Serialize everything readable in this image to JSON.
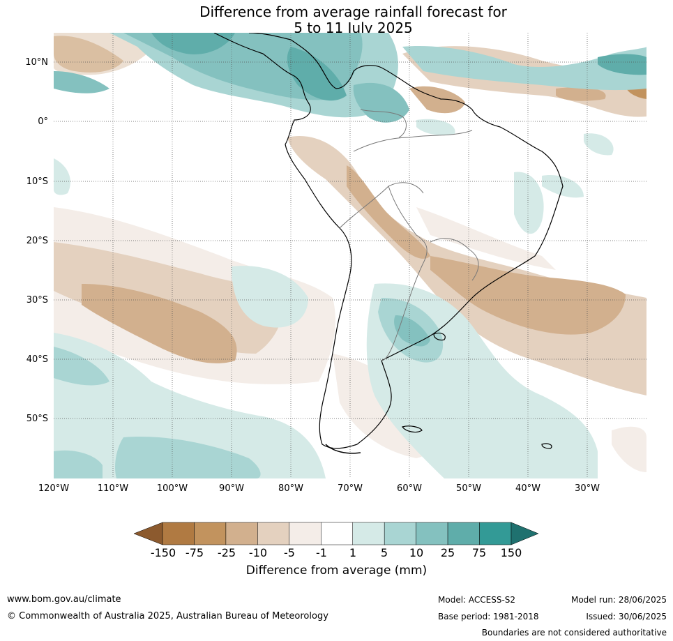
{
  "title": {
    "line1": "Difference from average rainfall forecast for",
    "line2": "5 to 11 July 2025"
  },
  "map": {
    "lat_labels": [
      "10°N",
      "0°",
      "10°S",
      "20°S",
      "30°S",
      "40°S",
      "50°S"
    ],
    "lon_labels": [
      "120°W",
      "110°W",
      "100°W",
      "90°W",
      "80°W",
      "70°W",
      "60°W",
      "50°W",
      "40°W",
      "30°W"
    ]
  },
  "legend": {
    "title": "Difference from average (mm)",
    "ticks": [
      "-150",
      "-75",
      "-25",
      "-10",
      "-5",
      "-1",
      "1",
      "5",
      "10",
      "25",
      "75",
      "150"
    ],
    "colors": {
      "under": "#8c5a2e",
      "bins": [
        "#b07a42",
        "#c2935e",
        "#d2b08e",
        "#e4d1bf",
        "#f4ede8",
        "#ffffff",
        "#d5eae7",
        "#a9d5d3",
        "#84c1bf",
        "#5fadaa",
        "#339a96"
      ],
      "over": "#1f716f"
    }
  },
  "footer": {
    "url": "www.bom.gov.au/climate",
    "copyright": "© Commonwealth of Australia 2025, Australian Bureau of Meteorology",
    "model": "Model: ACCESS-S2",
    "base_period": "Base period: 1981-2018",
    "model_run": "Model run: 28/06/2025",
    "issued": "Issued: 30/06/2025",
    "disclaimer": "Boundaries are not considered authoritative"
  }
}
